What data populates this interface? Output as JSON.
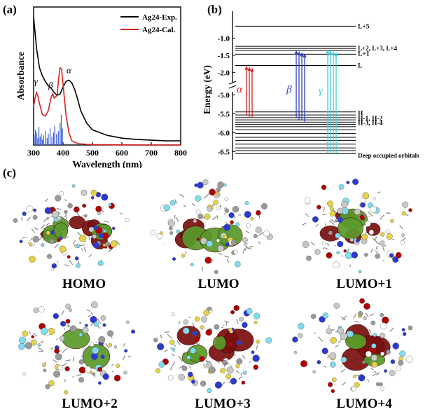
{
  "panel_a": {
    "label": "(a)",
    "chart_data": {
      "type": "line",
      "xlabel": "Wavelength (nm)",
      "ylabel": "Absorbance",
      "xlim": [
        300,
        800
      ],
      "x_ticks": [
        300,
        400,
        500,
        600,
        700,
        800
      ],
      "legend_position": "top-right",
      "series": [
        {
          "name": "Ag24-Exp.",
          "color": "#000000",
          "x": [
            300,
            310,
            320,
            330,
            340,
            350,
            360,
            370,
            380,
            390,
            400,
            410,
            420,
            430,
            440,
            450,
            460,
            480,
            500,
            550,
            600,
            650,
            700,
            750,
            800
          ],
          "y": [
            0.93,
            0.7,
            0.56,
            0.5,
            0.46,
            0.43,
            0.41,
            0.38,
            0.36,
            0.37,
            0.42,
            0.46,
            0.47,
            0.45,
            0.4,
            0.33,
            0.25,
            0.16,
            0.11,
            0.07,
            0.05,
            0.04,
            0.035,
            0.03,
            0.03
          ]
        },
        {
          "name": "Ag24-Cal.",
          "color": "#d62020",
          "x": [
            300,
            305,
            310,
            315,
            320,
            330,
            340,
            350,
            360,
            365,
            370,
            380,
            385,
            390,
            395,
            400,
            410,
            420,
            430,
            450,
            480,
            500,
            550,
            600,
            700,
            800
          ],
          "y": [
            0.28,
            0.34,
            0.38,
            0.35,
            0.3,
            0.22,
            0.21,
            0.25,
            0.35,
            0.37,
            0.34,
            0.36,
            0.48,
            0.56,
            0.55,
            0.44,
            0.22,
            0.09,
            0.03,
            0.01,
            0.005,
            0.003,
            0.002,
            0.001,
            0.0,
            0.0
          ]
        }
      ],
      "oscillator_bars": {
        "color": "#3a5fe0",
        "x": [
          302,
          306,
          310,
          314,
          318,
          322,
          326,
          330,
          334,
          340,
          346,
          350,
          356,
          362,
          368,
          372,
          378,
          384,
          390,
          394,
          398
        ],
        "height": [
          0.07,
          0.11,
          0.09,
          0.05,
          0.13,
          0.06,
          0.08,
          0.04,
          0.07,
          0.1,
          0.05,
          0.08,
          0.12,
          0.06,
          0.09,
          0.14,
          0.08,
          0.1,
          0.16,
          0.22,
          0.12
        ]
      },
      "peak_labels": [
        {
          "text": "γ",
          "x": 308,
          "y": 0.44
        },
        {
          "text": "β",
          "x": 358,
          "y": 0.41
        },
        {
          "text": "α",
          "x": 420,
          "y": 0.52
        }
      ]
    }
  },
  "panel_b": {
    "label": "(b)",
    "chart_data": {
      "type": "energy-level diagram",
      "ylabel": "Energy (eV)",
      "y_ticks": [
        "-1.0",
        "-1.5",
        "-2.0",
        "-5.0",
        "-5.5",
        "-6.0",
        "-6.5"
      ],
      "axis_break": true,
      "upper_range": [
        -2.3,
        -0.5
      ],
      "lower_range": [
        -6.6,
        -4.9
      ],
      "level_labels": [
        {
          "text": "L+5",
          "energy": -0.65
        },
        {
          "text": "L+2, L+3, L+4",
          "energy": -1.32
        },
        {
          "text": "L+1",
          "energy": -1.47
        },
        {
          "text": "L",
          "energy": -1.8
        },
        {
          "text": "H",
          "energy": -5.48
        },
        {
          "text": "H-1, H-2",
          "energy": -5.62
        },
        {
          "text": "H-3, H-4",
          "energy": -5.74
        },
        {
          "text": "Deep occupied orbitals",
          "energy": -6.6
        }
      ],
      "levels_upper": [
        -0.65,
        -1.24,
        -1.3,
        -1.36,
        -1.47,
        -1.8
      ],
      "levels_lower": [
        -5.45,
        -5.53,
        -5.6,
        -5.66,
        -5.72,
        -5.78,
        -5.84,
        -5.92,
        -6.02,
        -6.12,
        -6.2,
        -6.3,
        -6.4,
        -6.47,
        -6.55
      ],
      "transitions": [
        {
          "label": "α",
          "color": "#d62020",
          "count": 3
        },
        {
          "label": "β",
          "color": "#2f3fb8",
          "count": 4
        },
        {
          "label": "γ",
          "color": "#3fd0d8",
          "count": 4
        }
      ]
    }
  },
  "panel_c": {
    "label": "(c)",
    "orbitals": [
      "HOMO",
      "LUMO",
      "LUMO+1",
      "LUMO+2",
      "LUMO+3",
      "LUMO+4"
    ]
  }
}
